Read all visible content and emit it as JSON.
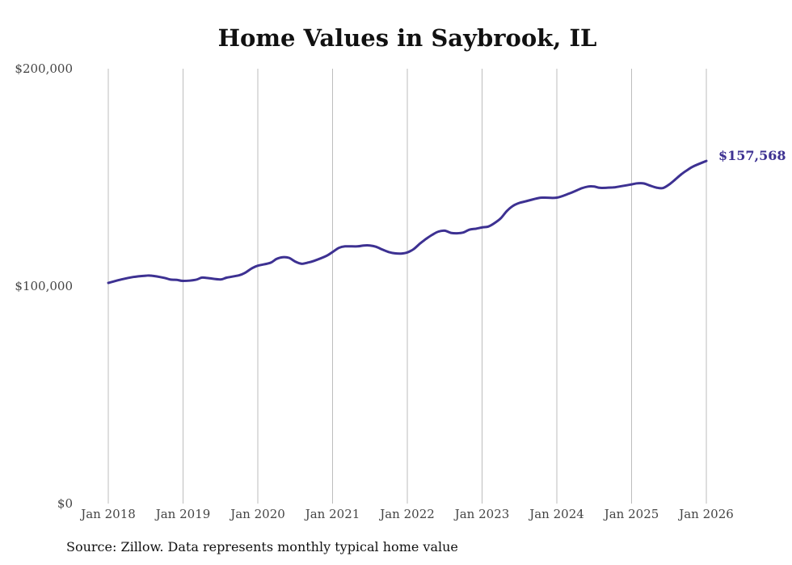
{
  "chart_data": {
    "type": "line",
    "title": "Home Values in Saybrook, IL",
    "xlabel": "",
    "ylabel": "",
    "ylim": [
      0,
      200000
    ],
    "xlim": [
      2018.0,
      2026.0
    ],
    "y_ticks": [
      {
        "value": 0,
        "label": "$0"
      },
      {
        "value": 100000,
        "label": "$100,000"
      },
      {
        "value": 200000,
        "label": "$200,000"
      }
    ],
    "x_ticks": [
      {
        "value": 2018,
        "label": "Jan 2018"
      },
      {
        "value": 2019,
        "label": "Jan 2019"
      },
      {
        "value": 2020,
        "label": "Jan 2020"
      },
      {
        "value": 2021,
        "label": "Jan 2021"
      },
      {
        "value": 2022,
        "label": "Jan 2022"
      },
      {
        "value": 2023,
        "label": "Jan 2023"
      },
      {
        "value": 2024,
        "label": "Jan 2024"
      },
      {
        "value": 2025,
        "label": "Jan 2025"
      },
      {
        "value": 2026,
        "label": "Jan 2026"
      }
    ],
    "grid": {
      "vertical": true,
      "horizontal": false
    },
    "series": [
      {
        "name": "Typical home value",
        "color": "#3d3192",
        "x": [
          2018.0,
          2018.167,
          2018.333,
          2018.5,
          2018.583,
          2018.75,
          2018.833,
          2018.917,
          2019.0,
          2019.167,
          2019.25,
          2019.333,
          2019.5,
          2019.583,
          2019.75,
          2019.833,
          2019.917,
          2020.0,
          2020.167,
          2020.25,
          2020.333,
          2020.417,
          2020.5,
          2020.583,
          2020.667,
          2020.75,
          2020.917,
          2021.0,
          2021.083,
          2021.167,
          2021.333,
          2021.417,
          2021.5,
          2021.583,
          2021.667,
          2021.75,
          2021.833,
          2021.917,
          2022.0,
          2022.083,
          2022.167,
          2022.25,
          2022.333,
          2022.417,
          2022.5,
          2022.583,
          2022.667,
          2022.75,
          2022.833,
          2022.917,
          2023.0,
          2023.083,
          2023.167,
          2023.25,
          2023.333,
          2023.417,
          2023.5,
          2023.583,
          2023.75,
          2023.833,
          2024.0,
          2024.167,
          2024.333,
          2024.417,
          2024.5,
          2024.583,
          2024.75,
          2024.833,
          2025.0,
          2025.083,
          2025.167,
          2025.25,
          2025.333,
          2025.417,
          2025.5,
          2025.583,
          2025.667,
          2025.75,
          2025.833,
          2026.0
        ],
        "values": [
          101500,
          103000,
          104200,
          104800,
          104800,
          103800,
          103000,
          102900,
          102400,
          102900,
          103900,
          103700,
          103100,
          103900,
          105000,
          106200,
          108100,
          109400,
          110700,
          112500,
          113300,
          113000,
          111300,
          110300,
          110800,
          111600,
          113900,
          115700,
          117600,
          118300,
          118300,
          118700,
          118700,
          118100,
          116800,
          115700,
          115100,
          115000,
          115500,
          117000,
          119500,
          121700,
          123600,
          125100,
          125500,
          124500,
          124300,
          124700,
          126000,
          126400,
          127000,
          127400,
          129000,
          131200,
          134600,
          137000,
          138300,
          139000,
          140500,
          140700,
          140700,
          142600,
          145000,
          145800,
          145800,
          145200,
          145400,
          145800,
          146800,
          147300,
          147200,
          146200,
          145300,
          145100,
          146700,
          149000,
          151500,
          153500,
          155200,
          157568
        ]
      }
    ],
    "end_label": "$157,568",
    "source": "Source: Zillow. Data represents monthly typical home value"
  }
}
